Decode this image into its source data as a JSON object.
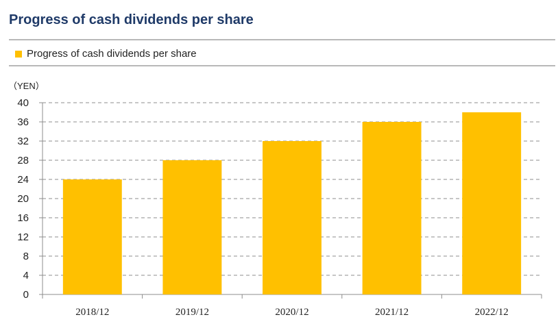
{
  "chart_data": {
    "type": "bar",
    "title": "Progress of cash dividends per share",
    "legend": [
      "Progress of cash dividends per share"
    ],
    "legend_position": "top-left",
    "unit_label": "（YEN）",
    "xlabel": "",
    "ylabel": "",
    "categories": [
      "2018/12",
      "2019/12",
      "2020/12",
      "2021/12",
      "2022/12"
    ],
    "series": [
      {
        "name": "Progress of cash dividends per share",
        "values": [
          24,
          28,
          32,
          36,
          38
        ]
      }
    ],
    "ylim": [
      0,
      40
    ],
    "yticks": [
      0,
      4,
      8,
      12,
      16,
      20,
      24,
      28,
      32,
      36,
      40
    ],
    "grid": true,
    "grid_style": "dashed",
    "bar_color": "#ffc000"
  }
}
